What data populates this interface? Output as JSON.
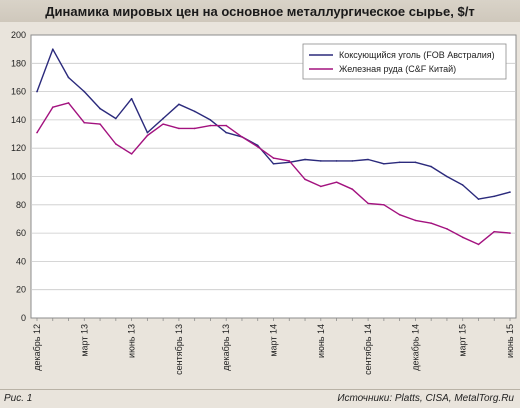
{
  "chart_data": {
    "type": "line",
    "title": "Динамика мировых цен на основное металлургическое сырье, $/т",
    "xlabel": "",
    "ylabel": "",
    "ylim": [
      0,
      200
    ],
    "yticks": [
      0,
      20,
      40,
      60,
      80,
      100,
      120,
      140,
      160,
      180,
      200
    ],
    "grid": true,
    "legend_position": "top-right",
    "x": [
      "2012-12",
      "2013-01",
      "2013-02",
      "2013-03",
      "2013-04",
      "2013-05",
      "2013-06",
      "2013-07",
      "2013-08",
      "2013-09",
      "2013-10",
      "2013-11",
      "2013-12",
      "2014-01",
      "2014-02",
      "2014-03",
      "2014-04",
      "2014-05",
      "2014-06",
      "2014-07",
      "2014-08",
      "2014-09",
      "2014-10",
      "2014-11",
      "2014-12",
      "2015-01",
      "2015-02",
      "2015-03",
      "2015-04",
      "2015-05",
      "2015-06"
    ],
    "xtick_labels": [
      {
        "index": 0,
        "label": "декабрь 12"
      },
      {
        "index": 3,
        "label": "март 13"
      },
      {
        "index": 6,
        "label": "июнь 13"
      },
      {
        "index": 9,
        "label": "сентябрь 13"
      },
      {
        "index": 12,
        "label": "декабрь 13"
      },
      {
        "index": 15,
        "label": "март 14"
      },
      {
        "index": 18,
        "label": "июнь 14"
      },
      {
        "index": 21,
        "label": "сентябрь 14"
      },
      {
        "index": 24,
        "label": "декабрь 14"
      },
      {
        "index": 27,
        "label": "март 15"
      },
      {
        "index": 30,
        "label": "июнь 15"
      }
    ],
    "series": [
      {
        "name": "Коксующийся уголь (FOB Австралия)",
        "color": "#2b2a7c",
        "values": [
          160,
          190,
          170,
          160,
          148,
          141,
          155,
          131,
          141,
          151,
          146,
          140,
          131,
          128,
          122,
          109,
          110,
          112,
          111,
          111,
          111,
          112,
          109,
          110,
          110,
          107,
          100,
          94,
          84,
          86,
          89
        ]
      },
      {
        "name": "Железная руда (C&F Китай)",
        "color": "#a3127f",
        "values": [
          131,
          149,
          152,
          138,
          137,
          123,
          116,
          129,
          137,
          134,
          134,
          136,
          136,
          128,
          121,
          113,
          111,
          98,
          93,
          96,
          91,
          81,
          80,
          73,
          69,
          67,
          63,
          57,
          52,
          61,
          60
        ]
      }
    ]
  },
  "footer": {
    "figure_label": "Рис. 1",
    "source": "Источники: Platts, CISA, MetalTorg.Ru"
  }
}
